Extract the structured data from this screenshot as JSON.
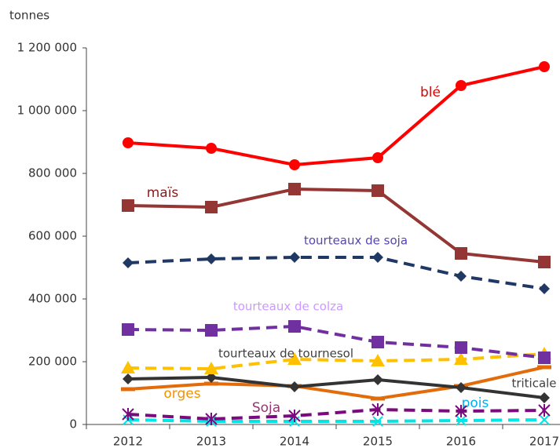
{
  "chart_data": {
    "type": "line",
    "y_label": "tonnes",
    "categories": [
      "2012",
      "2013",
      "2014",
      "2015",
      "2016",
      "2017"
    ],
    "ylim": [
      0,
      1200000
    ],
    "yticks": [
      0,
      {
        "value": 200000,
        "label": "200 000"
      },
      {
        "value": 400000,
        "label": "400 000"
      },
      {
        "value": 600000,
        "label": "600 000"
      },
      {
        "value": 800000,
        "label": "800 000"
      },
      {
        "value": 1000000,
        "label": "1 000 000"
      },
      {
        "value": 1200000,
        "label": "1 200 000"
      }
    ],
    "grid": false,
    "series": [
      {
        "name": "blé",
        "color": "#ff0000",
        "marker": "circle",
        "dashed": false,
        "label_color": "#e00000",
        "values": [
          897500,
          880000,
          827500,
          850000,
          1080000,
          1140000
        ]
      },
      {
        "name": "maïs",
        "color": "#943634",
        "marker": "square",
        "dashed": false,
        "label_color": "#8b1a1a",
        "values": [
          697500,
          692500,
          750000,
          745000,
          545000,
          517500
        ]
      },
      {
        "name": "tourteaux de soja",
        "color": "#1f3864",
        "marker": "diamond",
        "dashed": true,
        "label_color": "#5548a8",
        "values": [
          515000,
          527500,
          532500,
          532500,
          472500,
          432500
        ]
      },
      {
        "name": "tourteaux de colza",
        "color": "#7030a0",
        "marker": "square",
        "dashed": true,
        "label_color": "#cc99ff",
        "values": [
          302500,
          300000,
          312500,
          262500,
          245000,
          212500
        ]
      },
      {
        "name": "tourteaux de tournesol",
        "color": "#ffc000",
        "marker": "triangle",
        "dashed": true,
        "label_color": "#404040",
        "values": [
          180000,
          177500,
          207500,
          202500,
          207500,
          225000
        ]
      },
      {
        "name": "triticale",
        "color": "#333333",
        "marker": "diamond",
        "dashed": false,
        "label_color": "#404040",
        "values": [
          145000,
          150000,
          120000,
          142500,
          117500,
          85000
        ]
      },
      {
        "name": "orges",
        "color": "#e36c0a",
        "marker": "dash",
        "dashed": false,
        "label_color": "#f39200",
        "values": [
          112500,
          130000,
          122500,
          82500,
          122500,
          182500
        ]
      },
      {
        "name": "Soja",
        "color": "#7b0a7e",
        "marker": "asterisk",
        "dashed": true,
        "label_color": "#943674",
        "values": [
          32500,
          17500,
          27500,
          47500,
          42500,
          45000
        ]
      },
      {
        "name": "pois",
        "color": "#00e5e5",
        "marker": "x",
        "dashed": true,
        "label_color": "#00b0f0",
        "values": [
          15000,
          10000,
          10000,
          10000,
          12500,
          15000
        ]
      }
    ]
  }
}
